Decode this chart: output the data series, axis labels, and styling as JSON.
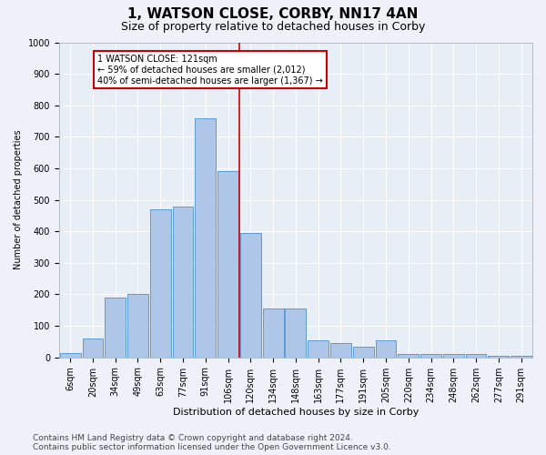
{
  "title": "1, WATSON CLOSE, CORBY, NN17 4AN",
  "subtitle": "Size of property relative to detached houses in Corby",
  "xlabel": "Distribution of detached houses by size in Corby",
  "ylabel": "Number of detached properties",
  "categories": [
    "6sqm",
    "20sqm",
    "34sqm",
    "49sqm",
    "63sqm",
    "77sqm",
    "91sqm",
    "106sqm",
    "120sqm",
    "134sqm",
    "148sqm",
    "163sqm",
    "177sqm",
    "191sqm",
    "205sqm",
    "220sqm",
    "234sqm",
    "248sqm",
    "262sqm",
    "277sqm",
    "291sqm"
  ],
  "values": [
    15,
    60,
    190,
    200,
    470,
    480,
    760,
    590,
    395,
    155,
    155,
    55,
    45,
    35,
    55,
    10,
    10,
    10,
    10,
    5,
    5
  ],
  "bar_color": "#aec6e8",
  "bar_edge_color": "#5a9bd5",
  "vline_index": 8,
  "reference_line_label": "1 WATSON CLOSE: 121sqm",
  "annotation_line1": "← 59% of detached houses are smaller (2,012)",
  "annotation_line2": "40% of semi-detached houses are larger (1,367) →",
  "annotation_box_color": "#ffffff",
  "annotation_box_edge_color": "#cc0000",
  "vline_color": "#cc0000",
  "ylim": [
    0,
    1000
  ],
  "yticks": [
    0,
    100,
    200,
    300,
    400,
    500,
    600,
    700,
    800,
    900,
    1000
  ],
  "footer_line1": "Contains HM Land Registry data © Crown copyright and database right 2024.",
  "footer_line2": "Contains public sector information licensed under the Open Government Licence v3.0.",
  "background_color": "#eef2f8",
  "plot_background_color": "#e8eef6",
  "grid_color": "#ffffff",
  "title_fontsize": 11,
  "subtitle_fontsize": 9,
  "axis_fontsize": 7,
  "ylabel_fontsize": 7,
  "xlabel_fontsize": 8,
  "footer_fontsize": 6.5,
  "annotation_fontsize": 7
}
